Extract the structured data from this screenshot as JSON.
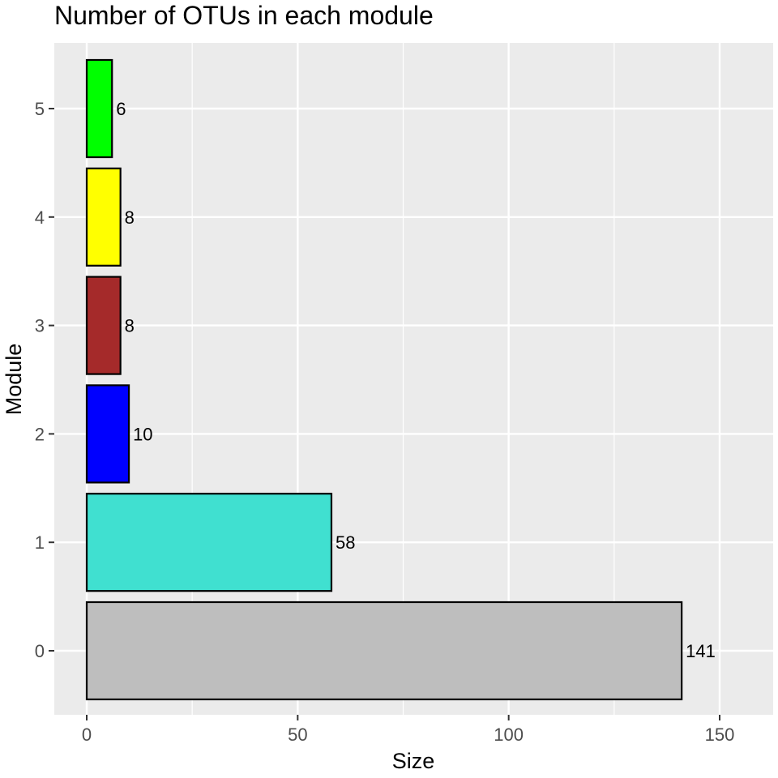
{
  "chart_data": {
    "type": "bar",
    "orientation": "horizontal",
    "title": "Number of OTUs in each module",
    "xlabel": "Size",
    "ylabel": "Module",
    "categories": [
      "0",
      "1",
      "2",
      "3",
      "4",
      "5"
    ],
    "values": [
      141,
      58,
      10,
      8,
      8,
      6
    ],
    "colors": [
      "#BEBEBE",
      "#40E0D0",
      "#0000FF",
      "#A52A2A",
      "#FFFF00",
      "#00FF00"
    ],
    "bar_labels": [
      "141",
      "58",
      "10",
      "8",
      "8",
      "6"
    ],
    "xlim": [
      -7.5,
      162
    ],
    "x_ticks": [
      0,
      50,
      100,
      150
    ],
    "x_tick_labels": [
      "0",
      "50",
      "100",
      "150"
    ],
    "y_tick_labels": [
      "0",
      "1",
      "2",
      "3",
      "4",
      "5"
    ],
    "grid": true,
    "legend": "none",
    "panel_background": "#EBEBEB",
    "bar_outline": "#000000"
  }
}
